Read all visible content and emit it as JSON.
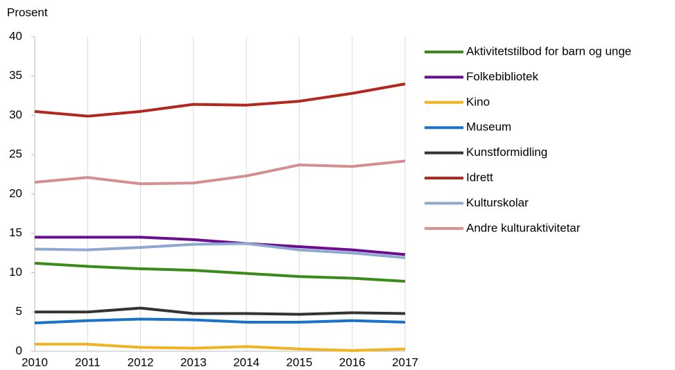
{
  "chart_data": {
    "type": "line",
    "y_label": "Prosent",
    "x": [
      2010,
      2011,
      2012,
      2013,
      2014,
      2015,
      2016,
      2017
    ],
    "xlim": [
      2010,
      2017
    ],
    "xticks": [
      2010,
      2011,
      2012,
      2013,
      2014,
      2015,
      2016,
      2017
    ],
    "ylim": [
      0,
      40
    ],
    "yticks": [
      0,
      5,
      10,
      15,
      20,
      25,
      30,
      35,
      40
    ],
    "grid": true,
    "legend": "right",
    "series": [
      {
        "name": "Aktivitetstilbod for barn og unge",
        "color": "#3a8a1c",
        "values": [
          11.2,
          10.8,
          10.5,
          10.3,
          9.9,
          9.5,
          9.3,
          8.9
        ]
      },
      {
        "name": "Folkebibliotek",
        "color": "#6a0d8f",
        "values": [
          14.5,
          14.5,
          14.5,
          14.2,
          13.7,
          13.3,
          12.9,
          12.3
        ]
      },
      {
        "name": "Kino",
        "color": "#f0b323",
        "values": [
          0.9,
          0.9,
          0.5,
          0.4,
          0.6,
          0.3,
          0.1,
          0.3
        ]
      },
      {
        "name": "Museum",
        "color": "#1a73c8",
        "values": [
          3.6,
          3.9,
          4.1,
          4.0,
          3.7,
          3.7,
          3.9,
          3.7
        ]
      },
      {
        "name": "Kunstformidling",
        "color": "#333333",
        "values": [
          5.0,
          5.0,
          5.5,
          4.8,
          4.8,
          4.7,
          4.9,
          4.8
        ]
      },
      {
        "name": "Idrett",
        "color": "#b0281e",
        "values": [
          30.5,
          29.9,
          30.5,
          31.4,
          31.3,
          31.8,
          32.8,
          34.0
        ]
      },
      {
        "name": "Kulturskolar",
        "color": "#8fa8d0",
        "values": [
          13.0,
          12.9,
          13.2,
          13.6,
          13.7,
          12.9,
          12.5,
          11.9
        ]
      },
      {
        "name": "Andre kulturaktivitetar",
        "color": "#d49090",
        "values": [
          21.5,
          22.1,
          21.3,
          21.4,
          22.3,
          23.7,
          23.5,
          24.2
        ]
      }
    ]
  }
}
